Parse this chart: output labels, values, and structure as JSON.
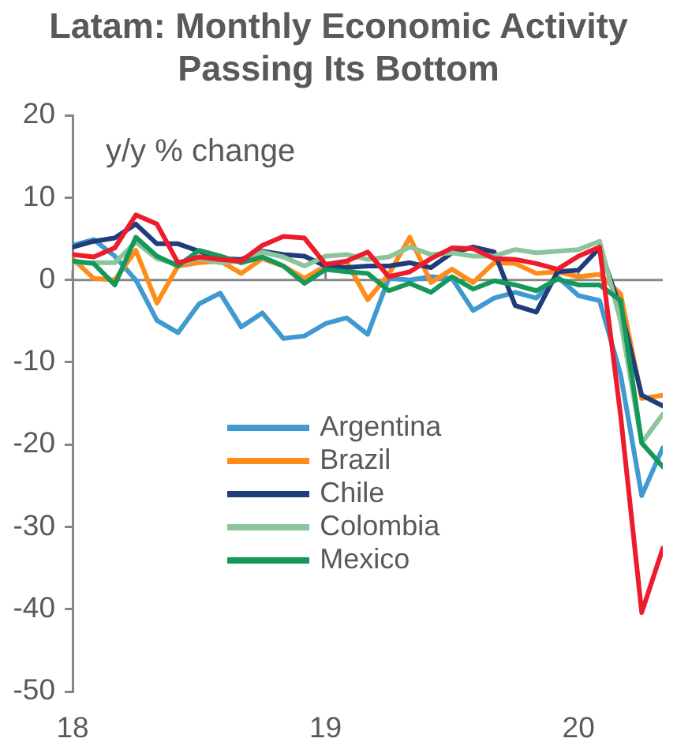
{
  "chart_data": {
    "type": "line",
    "title": "Latam: Monthly Economic Activity Passing Its Bottom",
    "ylabel": "y/y % change",
    "x": [
      "2018-01",
      "2018-02",
      "2018-03",
      "2018-04",
      "2018-05",
      "2018-06",
      "2018-07",
      "2018-08",
      "2018-09",
      "2018-10",
      "2018-11",
      "2018-12",
      "2019-01",
      "2019-02",
      "2019-03",
      "2019-04",
      "2019-05",
      "2019-06",
      "2019-07",
      "2019-08",
      "2019-09",
      "2019-10",
      "2019-11",
      "2019-12",
      "2020-01",
      "2020-02",
      "2020-03",
      "2020-04",
      "2020-05"
    ],
    "xlim": [
      "2018-01",
      "2020-05"
    ],
    "xticks": [
      {
        "value": "2018-01",
        "label": "18"
      },
      {
        "value": "2019-01",
        "label": "19"
      },
      {
        "value": "2020-01",
        "label": "20"
      }
    ],
    "ylim": [
      -50,
      20
    ],
    "yticks": [
      -50,
      -40,
      -30,
      -20,
      -10,
      0,
      10,
      20
    ],
    "grid": false,
    "legend": "bottom",
    "marker": "none",
    "line_style": "solid",
    "ref_lines": [
      {
        "axis": "y",
        "value": 0,
        "color": "#868686"
      }
    ],
    "series": [
      {
        "name": "Argentina",
        "color": "#409ad0",
        "values": [
          4.2,
          4.9,
          2.9,
          0.0,
          -4.9,
          -6.4,
          -2.9,
          -1.6,
          -5.7,
          -4.0,
          -7.1,
          -6.8,
          -5.3,
          -4.6,
          -6.6,
          0.2,
          0.0,
          0.4,
          0.2,
          -3.7,
          -2.2,
          -1.5,
          -2.2,
          0.4,
          -1.9,
          -2.5,
          -11.5,
          -26.2,
          -20.4
        ]
      },
      {
        "name": "Brazil",
        "color": "#ff8c1a",
        "values": [
          2.6,
          0.2,
          0.0,
          3.6,
          -2.8,
          1.7,
          2.1,
          2.3,
          0.8,
          2.6,
          1.7,
          0.2,
          1.7,
          2.2,
          -2.4,
          0.7,
          5.2,
          -0.3,
          1.3,
          -0.3,
          2.1,
          2.0,
          0.8,
          1.0,
          0.4,
          0.7,
          -1.7,
          -14.4,
          -14.0
        ]
      },
      {
        "name": "Chile",
        "color": "#1f3d7a",
        "values": [
          4.0,
          4.7,
          5.1,
          6.8,
          4.4,
          4.4,
          3.5,
          2.6,
          2.5,
          3.5,
          3.1,
          2.9,
          1.7,
          1.5,
          1.7,
          1.7,
          2.1,
          1.5,
          3.3,
          4.0,
          3.4,
          -3.1,
          -3.9,
          1.0,
          1.2,
          3.9,
          -3.5,
          -14.0,
          -15.3
        ]
      },
      {
        "name": "Colombia",
        "color": "#8cc49c",
        "values": [
          2.1,
          2.1,
          2.1,
          4.6,
          2.6,
          1.9,
          2.6,
          2.1,
          2.3,
          3.4,
          2.8,
          1.7,
          2.9,
          3.1,
          2.5,
          2.8,
          4.0,
          3.1,
          3.3,
          2.9,
          2.9,
          3.7,
          3.3,
          3.5,
          3.7,
          4.7,
          -5.0,
          -19.8,
          -16.3
        ]
      },
      {
        "name": "Mexico",
        "color": "#15985a",
        "values": [
          2.3,
          2.0,
          -0.6,
          5.2,
          2.9,
          1.7,
          3.6,
          2.9,
          2.1,
          2.8,
          1.7,
          -0.4,
          1.3,
          1.0,
          0.8,
          -1.3,
          -0.4,
          -1.5,
          0.4,
          -1.1,
          -0.1,
          -0.6,
          -1.3,
          0.1,
          -0.6,
          -0.6,
          -2.5,
          -19.8,
          -22.7
        ]
      },
      {
        "color": "#ec1c2c",
        "values": [
          3.1,
          2.8,
          3.9,
          7.9,
          6.8,
          2.1,
          2.8,
          2.5,
          2.3,
          4.2,
          5.3,
          5.1,
          1.9,
          2.3,
          3.4,
          0.4,
          1.0,
          2.6,
          3.9,
          3.8,
          2.6,
          2.5,
          2.0,
          1.3,
          2.9,
          4.0,
          -16.5,
          -40.4,
          -32.6
        ]
      }
    ]
  }
}
